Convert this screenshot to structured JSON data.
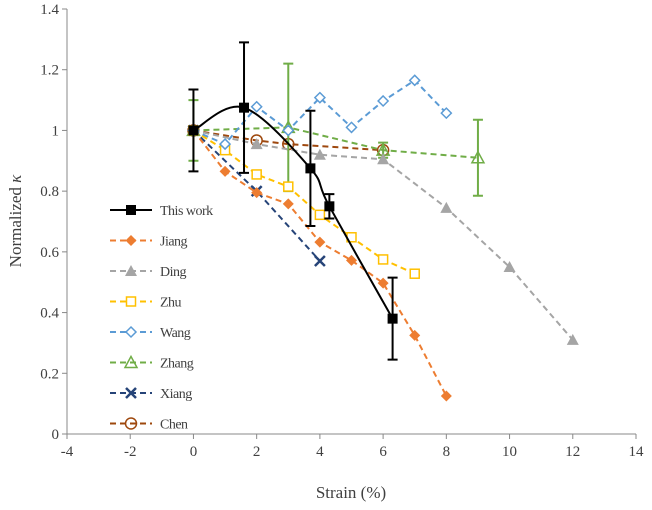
{
  "chart_data": {
    "type": "line",
    "title": "",
    "xlabel": "Strain (%)",
    "ylabel": "Normalized κ",
    "ylabel_main": "Normalized ",
    "ylabel_symbol": "κ",
    "xlim": [
      -4,
      14
    ],
    "ylim": [
      0,
      1.4
    ],
    "xticks": [
      -4,
      -2,
      0,
      2,
      4,
      6,
      8,
      10,
      12,
      14
    ],
    "yticks": [
      0,
      0.2,
      0.4,
      0.6,
      0.8,
      1,
      1.2,
      1.4
    ],
    "ytick_labels": [
      "0",
      "0.2",
      "0.4",
      "0.6",
      "0.8",
      "1",
      "1.2",
      "1.4"
    ],
    "legend_position": "left-inside",
    "series": [
      {
        "name": "This work",
        "color": "#000000",
        "marker": "square-filled",
        "dash": false,
        "smooth": true,
        "x": [
          0,
          1.6,
          3.7,
          4.3,
          6.3
        ],
        "y": [
          1.0,
          1.075,
          0.875,
          0.75,
          0.38
        ],
        "err": [
          0.135,
          0.215,
          0.19,
          0.04,
          0.135
        ]
      },
      {
        "name": "Jiang",
        "color": "#ED7D31",
        "marker": "diamond-filled",
        "dash": true,
        "x": [
          0,
          1,
          2,
          3,
          4,
          5,
          6,
          7,
          8
        ],
        "y": [
          1,
          0.865,
          0.795,
          0.758,
          0.632,
          0.572,
          0.497,
          0.325,
          0.125
        ]
      },
      {
        "name": "Ding",
        "color": "#A5A5A5",
        "marker": "triangle-filled",
        "dash": true,
        "x": [
          0,
          2,
          4,
          6,
          8,
          10,
          12
        ],
        "y": [
          1,
          0.955,
          0.92,
          0.905,
          0.745,
          0.55,
          0.31
        ]
      },
      {
        "name": "Zhu",
        "color": "#FFC000",
        "marker": "square-open",
        "dash": true,
        "x": [
          0,
          1,
          2,
          3,
          4,
          5,
          6,
          7
        ],
        "y": [
          1,
          0.935,
          0.855,
          0.815,
          0.722,
          0.648,
          0.575,
          0.528
        ]
      },
      {
        "name": "Wang",
        "color": "#5B9BD5",
        "marker": "diamond-open",
        "dash": true,
        "x": [
          0,
          1,
          2,
          3,
          4,
          5,
          6,
          7,
          8
        ],
        "y": [
          1,
          0.955,
          1.078,
          1.0,
          1.108,
          1.01,
          1.097,
          1.165,
          1.057
        ]
      },
      {
        "name": "Zhang",
        "color": "#70AD47",
        "marker": "triangle-open",
        "dash": true,
        "x": [
          0,
          3,
          6,
          9
        ],
        "y": [
          1,
          1.01,
          0.935,
          0.91
        ],
        "err": [
          0.1,
          0.21,
          0.025,
          0.125
        ]
      },
      {
        "name": "Xiang",
        "color": "#264478",
        "marker": "x",
        "dash": true,
        "x": [
          0,
          2,
          4
        ],
        "y": [
          1,
          0.8,
          0.57
        ]
      },
      {
        "name": "Chen",
        "color": "#9E480E",
        "marker": "circle-open",
        "dash": true,
        "x": [
          0,
          2,
          3,
          6
        ],
        "y": [
          1,
          0.967,
          0.955,
          0.935
        ]
      }
    ]
  }
}
